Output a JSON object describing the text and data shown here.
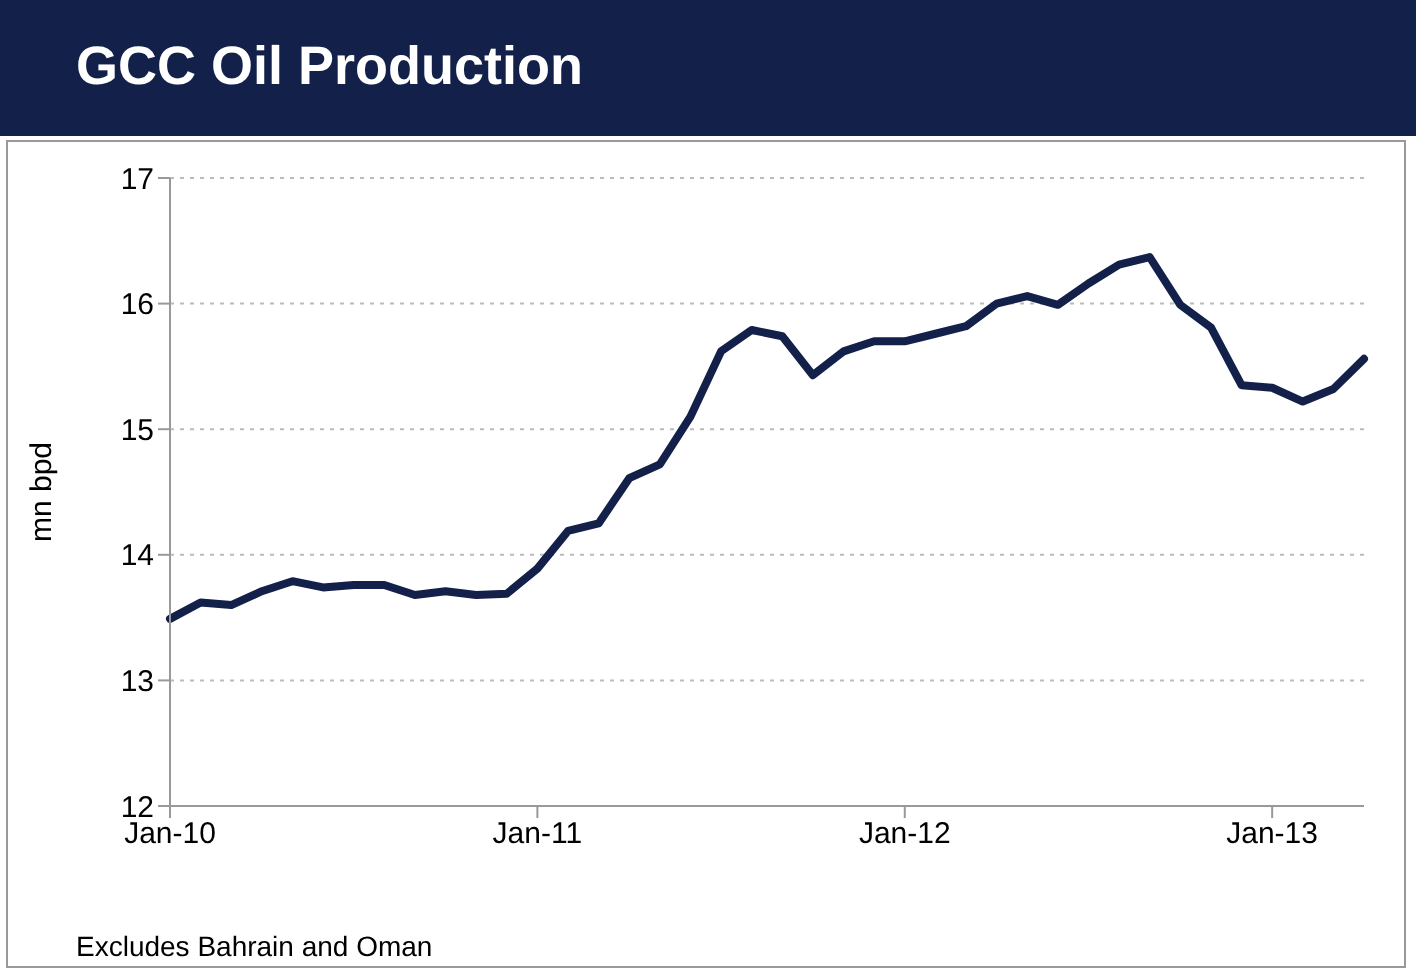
{
  "chart_data": {
    "type": "line",
    "title": "GCC Oil Production",
    "ylabel": "mn bpd",
    "categories": [
      "Jan-10",
      null,
      null,
      null,
      null,
      null,
      null,
      null,
      null,
      null,
      null,
      null,
      "Jan-11",
      null,
      null,
      null,
      null,
      null,
      null,
      null,
      null,
      null,
      null,
      null,
      "Jan-12",
      null,
      null,
      null,
      null,
      null,
      null,
      null,
      null,
      null,
      null,
      null,
      "Jan-13",
      null,
      null,
      null
    ],
    "series": [
      {
        "color": "#13204a",
        "values": [
          13.49,
          13.62,
          13.6,
          13.71,
          13.79,
          13.74,
          13.76,
          13.76,
          13.68,
          13.71,
          13.68,
          13.69,
          13.89,
          14.19,
          14.25,
          14.61,
          14.72,
          15.1,
          15.62,
          15.79,
          15.74,
          15.43,
          15.62,
          15.7,
          15.7,
          15.76,
          15.82,
          16.0,
          16.06,
          15.99,
          16.16,
          16.31,
          16.37,
          15.99,
          15.81,
          15.35,
          15.33,
          15.22,
          15.32,
          15.56
        ]
      }
    ],
    "ylim": [
      12,
      17
    ],
    "yticks": [
      12,
      13,
      14,
      15,
      16,
      17
    ],
    "grid": "y",
    "marker": "none",
    "line_style": "solid",
    "annotations": [
      "Excludes Bahrain and Oman"
    ]
  }
}
